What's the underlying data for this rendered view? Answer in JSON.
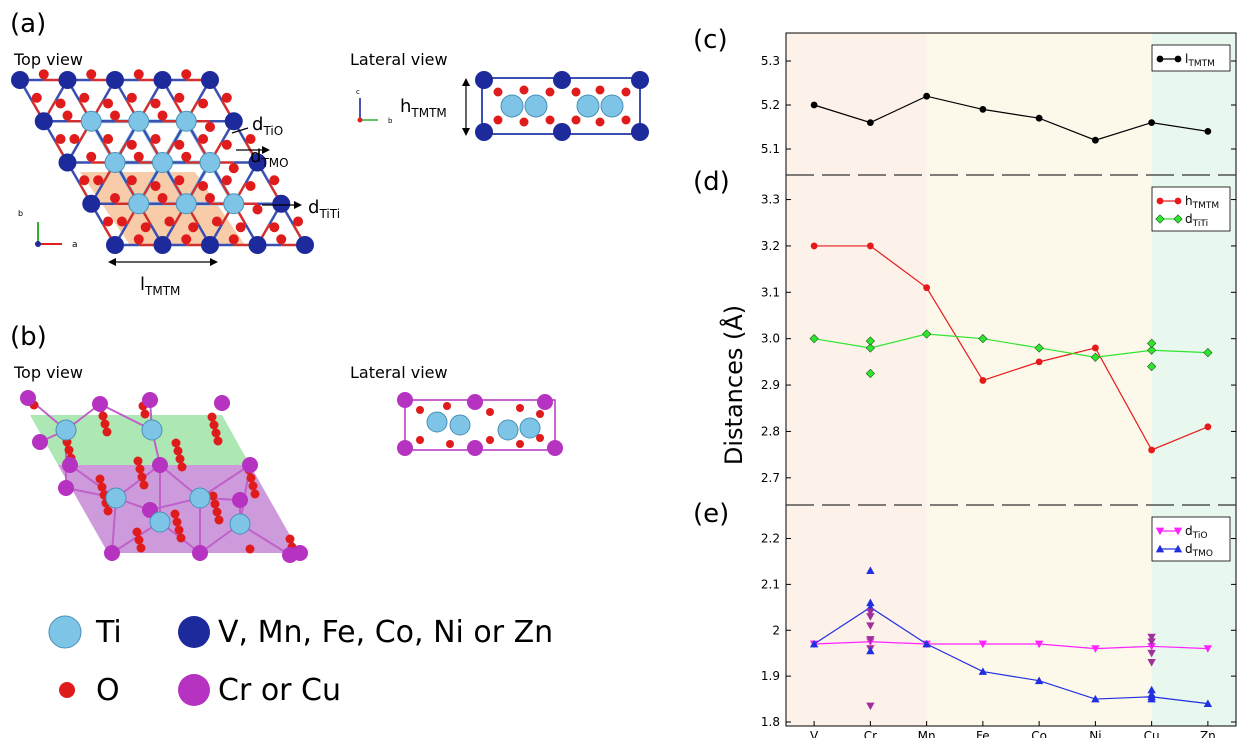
{
  "panels": {
    "a": "(a)",
    "b": "(b)",
    "c": "(c)",
    "d": "(d)",
    "e": "(e)"
  },
  "structure": {
    "a_top_view": "Top view",
    "a_lateral_view": "Lateral view",
    "b_top_view": "Top view",
    "b_lateral_view": "Lateral view",
    "d_tio": "d",
    "d_tio_sub": "TiO",
    "d_tmo": "d",
    "d_tmo_sub": "TMO",
    "d_titi": "d",
    "d_titi_sub": "TiTi",
    "l_tmtm": "l",
    "l_tmtm_sub": "TMTM",
    "h_tmtm": "h",
    "h_tmtm_sub": "TMTM",
    "axis_c": "c",
    "axis_b": "b",
    "axis_b2": "b",
    "axis_a": "a"
  },
  "atom_legend": {
    "ti": "Ti",
    "tm": "V, Mn, Fe, Co, Ni or Zn",
    "o": "O",
    "crcu": "Cr or Cu"
  },
  "colors": {
    "ti": "#7ec4e6",
    "tm": "#1c2a9c",
    "o": "#e01b1b",
    "crcu": "#b632c0",
    "shade_orange": "#f7c39a",
    "shade_green": "#9fe3a6",
    "shade_purple": "#c48ad6"
  },
  "chart_data": {
    "type": "line",
    "categories": [
      "V",
      "Cr",
      "Mn",
      "Fe",
      "Co",
      "Ni",
      "Cu",
      "Zn"
    ],
    "ylabel": "Distances (Å)",
    "xlabel": "",
    "background_bands": [
      {
        "from": "V",
        "to": "Mn",
        "color": "#fdf2ea"
      },
      {
        "from": "Mn",
        "to": "Cu",
        "color": "#fcf8ea"
      },
      {
        "from": "Cu",
        "to": "Zn",
        "color": "#e9f8ee"
      }
    ],
    "subplots": [
      {
        "panel": "c",
        "ylim": [
          5.05,
          5.35
        ],
        "yticks": [
          "5.1",
          "5.2",
          "5.3"
        ],
        "series": [
          {
            "name": "l",
            "sub": "TMTM",
            "color": "#000000",
            "marker": "circle",
            "values": [
              5.2,
              5.16,
              5.22,
              5.19,
              5.17,
              5.12,
              5.16,
              5.14
            ]
          }
        ],
        "legend_position": "top-right"
      },
      {
        "panel": "d",
        "ylim": [
          2.65,
          3.34
        ],
        "yticks": [
          "2.7",
          "2.8",
          "2.9",
          "3.0",
          "3.1",
          "3.2",
          "3.3"
        ],
        "series": [
          {
            "name": "h",
            "sub": "TMTM",
            "color": "#e8191b",
            "marker": "circle",
            "values": [
              3.2,
              3.2,
              3.11,
              2.91,
              2.95,
              2.98,
              2.76,
              2.81
            ]
          },
          {
            "name": "d",
            "sub": "TiTi",
            "color": "#2ee62e",
            "marker": "diamond",
            "values": [
              3.0,
              2.98,
              3.01,
              3.0,
              2.98,
              2.96,
              2.975,
              2.97
            ]
          }
        ],
        "extra_points": [
          {
            "category": "Cr",
            "values": [
              2.995,
              2.925
            ],
            "color": "#2ee62e",
            "marker": "diamond"
          },
          {
            "category": "Cu",
            "values": [
              2.99,
              2.94
            ],
            "color": "#2ee62e",
            "marker": "diamond"
          }
        ],
        "legend_position": "top-right"
      },
      {
        "panel": "e",
        "ylim": [
          1.8,
          2.26
        ],
        "yticks": [
          "1.8",
          "1.9",
          "2",
          "2.1",
          "2.2"
        ],
        "series": [
          {
            "name": "d",
            "sub": "TiO",
            "color": "#ff22ff",
            "marker": "triangle-down",
            "values": [
              1.97,
              1.975,
              1.97,
              1.97,
              1.97,
              1.96,
              1.965,
              1.96
            ]
          },
          {
            "name": "d",
            "sub": "TMO",
            "color": "#2030e0",
            "marker": "triangle-up",
            "values": [
              1.97,
              2.05,
              1.97,
              1.91,
              1.89,
              1.85,
              1.855,
              1.84
            ]
          }
        ],
        "extra_points": [
          {
            "category": "Cr",
            "values": [
              2.04,
              2.03,
              2.01,
              1.98,
              1.96,
              1.835
            ],
            "color": "#a0309a",
            "marker": "triangle-down"
          },
          {
            "category": "Cr",
            "values": [
              2.13,
              2.06,
              1.955
            ],
            "color": "#2030e0",
            "marker": "triangle-up"
          },
          {
            "category": "Cu",
            "values": [
              1.985,
              1.975,
              1.95,
              1.93
            ],
            "color": "#a0309a",
            "marker": "triangle-down"
          },
          {
            "category": "Cu",
            "values": [
              1.87,
              1.86,
              1.85
            ],
            "color": "#2030e0",
            "marker": "triangle-up"
          }
        ],
        "legend_position": "top-right"
      }
    ]
  }
}
